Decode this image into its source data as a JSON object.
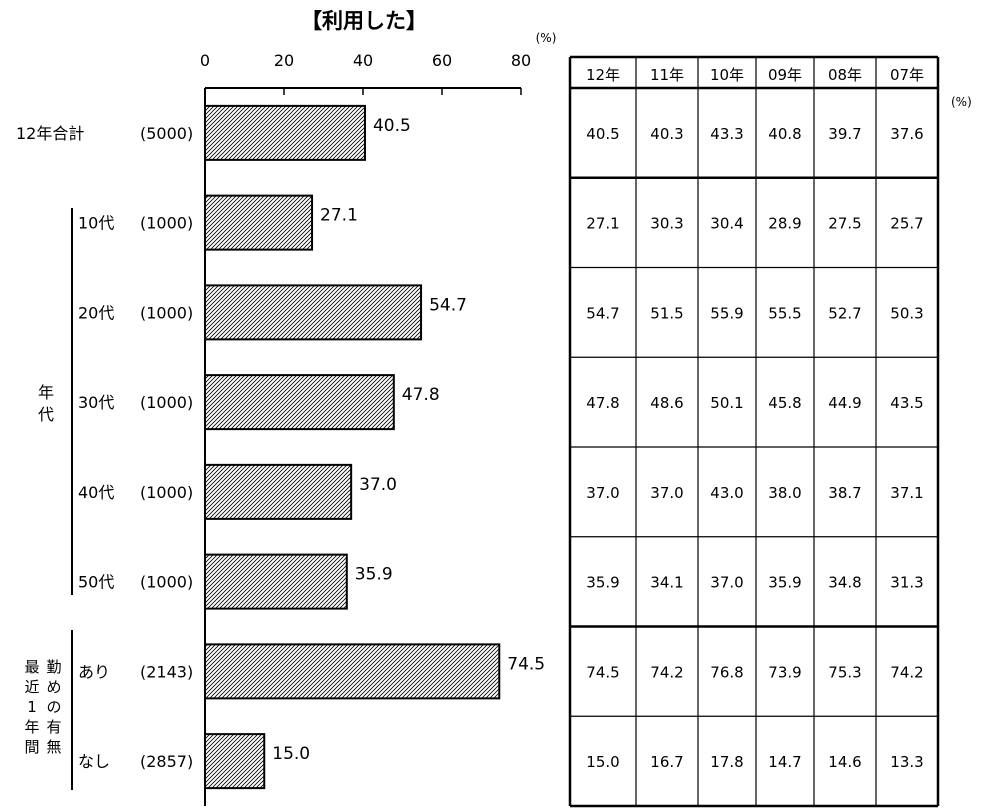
{
  "chart_data": {
    "type": "bar",
    "title": "【利用した】",
    "unit": "(%)",
    "table_unit": "(%)",
    "xlim": [
      0,
      80
    ],
    "xticks": [
      "0",
      "20",
      "40",
      "60",
      "80"
    ],
    "group_labels": {
      "age": "年代",
      "work": "最近1年間",
      "work2": "勤めの有無"
    },
    "rows": [
      {
        "label": "12年合計",
        "n": "(5000)",
        "value": 40.5,
        "value_text": "40.5",
        "history": [
          "40.5",
          "40.3",
          "43.3",
          "40.8",
          "39.7",
          "37.6"
        ]
      },
      {
        "label": "10代",
        "n": "(1000)",
        "value": 27.1,
        "value_text": "27.1",
        "history": [
          "27.1",
          "30.3",
          "30.4",
          "28.9",
          "27.5",
          "25.7"
        ]
      },
      {
        "label": "20代",
        "n": "(1000)",
        "value": 54.7,
        "value_text": "54.7",
        "history": [
          "54.7",
          "51.5",
          "55.9",
          "55.5",
          "52.7",
          "50.3"
        ]
      },
      {
        "label": "30代",
        "n": "(1000)",
        "value": 47.8,
        "value_text": "47.8",
        "history": [
          "47.8",
          "48.6",
          "50.1",
          "45.8",
          "44.9",
          "43.5"
        ]
      },
      {
        "label": "40代",
        "n": "(1000)",
        "value": 37.0,
        "value_text": "37.0",
        "history": [
          "37.0",
          "37.0",
          "43.0",
          "38.0",
          "38.7",
          "37.1"
        ]
      },
      {
        "label": "50代",
        "n": "(1000)",
        "value": 35.9,
        "value_text": "35.9",
        "history": [
          "35.9",
          "34.1",
          "37.0",
          "35.9",
          "34.8",
          "31.3"
        ]
      },
      {
        "label": "あり",
        "n": "(2143)",
        "value": 74.5,
        "value_text": "74.5",
        "history": [
          "74.5",
          "74.2",
          "76.8",
          "73.9",
          "75.3",
          "74.2"
        ]
      },
      {
        "label": "なし",
        "n": "(2857)",
        "value": 15.0,
        "value_text": "15.0",
        "history": [
          "15.0",
          "16.7",
          "17.8",
          "14.7",
          "14.6",
          "13.3"
        ]
      }
    ],
    "table_headers": [
      "12年",
      "11年",
      "10年",
      "09年",
      "08年",
      "07年"
    ]
  }
}
